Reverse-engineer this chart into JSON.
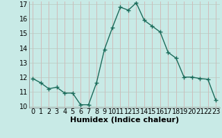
{
  "x": [
    0,
    1,
    2,
    3,
    4,
    5,
    6,
    7,
    8,
    9,
    10,
    11,
    12,
    13,
    14,
    15,
    16,
    17,
    18,
    19,
    20,
    21,
    22,
    23
  ],
  "y": [
    11.9,
    11.6,
    11.2,
    11.3,
    10.9,
    10.9,
    10.1,
    10.1,
    11.6,
    13.9,
    15.4,
    16.8,
    16.6,
    17.1,
    15.9,
    15.5,
    15.1,
    13.7,
    13.3,
    12.0,
    12.0,
    11.9,
    11.85,
    10.4
  ],
  "xlabel": "Humidex (Indice chaleur)",
  "ylim": [
    10,
    17
  ],
  "xlim": [
    -0.5,
    23.5
  ],
  "yticks": [
    10,
    11,
    12,
    13,
    14,
    15,
    16,
    17
  ],
  "xticks": [
    0,
    1,
    2,
    3,
    4,
    5,
    6,
    7,
    8,
    9,
    10,
    11,
    12,
    13,
    14,
    15,
    16,
    17,
    18,
    19,
    20,
    21,
    22,
    23
  ],
  "line_color": "#1a6b5a",
  "marker": "+",
  "marker_size": 4,
  "marker_lw": 1.0,
  "bg_color": "#c8eae6",
  "grid_color_h": "#b8c8c0",
  "grid_color_v": "#d4a8a8",
  "xlabel_fontsize": 8,
  "tick_fontsize": 7,
  "line_width": 1.0
}
